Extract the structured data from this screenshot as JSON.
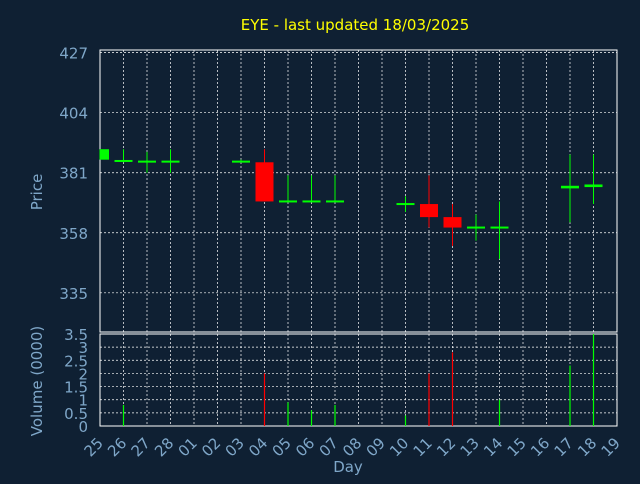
{
  "chart_data": {
    "type": "candlestick",
    "title": "EYE - last updated 18/03/2025",
    "xlabel": "Day",
    "ylabel_price": "Price",
    "ylabel_volume": "Volume (0000)",
    "x_ticks": [
      "25",
      "26",
      "27",
      "28",
      "01",
      "02",
      "03",
      "04",
      "05",
      "06",
      "07",
      "08",
      "09",
      "10",
      "11",
      "12",
      "13",
      "14",
      "15",
      "16",
      "17",
      "18",
      "19"
    ],
    "price_ylim": [
      320,
      428
    ],
    "price_ticks": [
      "427",
      "404",
      "381",
      "358",
      "335"
    ],
    "price_tick_values": [
      427,
      404,
      381,
      358,
      335
    ],
    "volume_ylim": [
      0,
      3.5
    ],
    "volume_ticks": [
      "3.5",
      "3",
      "2.5",
      "2",
      "1.5",
      "1",
      "0.5",
      "0"
    ],
    "volume_tick_values": [
      3.5,
      3,
      2.5,
      2,
      1.5,
      1,
      0.5,
      0
    ],
    "grid": true,
    "candles": [
      {
        "day": "25",
        "open": 386,
        "close": 390,
        "high": 390,
        "low": 386,
        "color": "up"
      },
      {
        "day": "26",
        "open": 385.5,
        "close": 385.5,
        "high": 390,
        "low": 385,
        "color": "up"
      },
      {
        "day": "27",
        "open": 385,
        "close": 385.5,
        "high": 389,
        "low": 381,
        "color": "up"
      },
      {
        "day": "28",
        "open": 385,
        "close": 385.5,
        "high": 390,
        "low": 381,
        "color": "up"
      },
      {
        "day": "03",
        "open": 385,
        "close": 385.5,
        "high": 386,
        "low": 385,
        "color": "up"
      },
      {
        "day": "04",
        "open": 385,
        "close": 370,
        "high": 390,
        "low": 370,
        "color": "down"
      },
      {
        "day": "05",
        "open": 370,
        "close": 370,
        "high": 380,
        "low": 370,
        "color": "up"
      },
      {
        "day": "06",
        "open": 370,
        "close": 370,
        "high": 380,
        "low": 370,
        "color": "up"
      },
      {
        "day": "07",
        "open": 370,
        "close": 370,
        "high": 380,
        "low": 370,
        "color": "up"
      },
      {
        "day": "10",
        "open": 369,
        "close": 369,
        "high": 372,
        "low": 366,
        "color": "up"
      },
      {
        "day": "11",
        "open": 369,
        "close": 364,
        "high": 380,
        "low": 360,
        "color": "down"
      },
      {
        "day": "12",
        "open": 364,
        "close": 360,
        "high": 369,
        "low": 353,
        "color": "down"
      },
      {
        "day": "13",
        "open": 360,
        "close": 360,
        "high": 365,
        "low": 355,
        "color": "up"
      },
      {
        "day": "14",
        "open": 360,
        "close": 360,
        "high": 370,
        "low": 348,
        "color": "up"
      },
      {
        "day": "17",
        "open": 375,
        "close": 376,
        "high": 388,
        "low": 362,
        "color": "up"
      },
      {
        "day": "18",
        "open": 375.5,
        "close": 376.5,
        "high": 388,
        "low": 369,
        "color": "up"
      }
    ],
    "volume": [
      {
        "day": "26",
        "value": 0.8,
        "color": "up"
      },
      {
        "day": "04",
        "value": 2.0,
        "color": "down"
      },
      {
        "day": "05",
        "value": 0.9,
        "color": "up"
      },
      {
        "day": "06",
        "value": 0.6,
        "color": "up"
      },
      {
        "day": "07",
        "value": 0.8,
        "color": "up"
      },
      {
        "day": "10",
        "value": 0.4,
        "color": "up"
      },
      {
        "day": "11",
        "value": 2.0,
        "color": "down"
      },
      {
        "day": "12",
        "value": 2.8,
        "color": "down"
      },
      {
        "day": "14",
        "value": 1.0,
        "color": "up"
      },
      {
        "day": "17",
        "value": 2.3,
        "color": "up"
      },
      {
        "day": "18",
        "value": 3.5,
        "color": "up"
      }
    ]
  },
  "colors": {
    "background": "#0f2033",
    "title": "#ffff00",
    "axis_text": "#7fa7c9",
    "grid": "#ffffff",
    "up": "#00ff00",
    "down": "#ff0000"
  }
}
